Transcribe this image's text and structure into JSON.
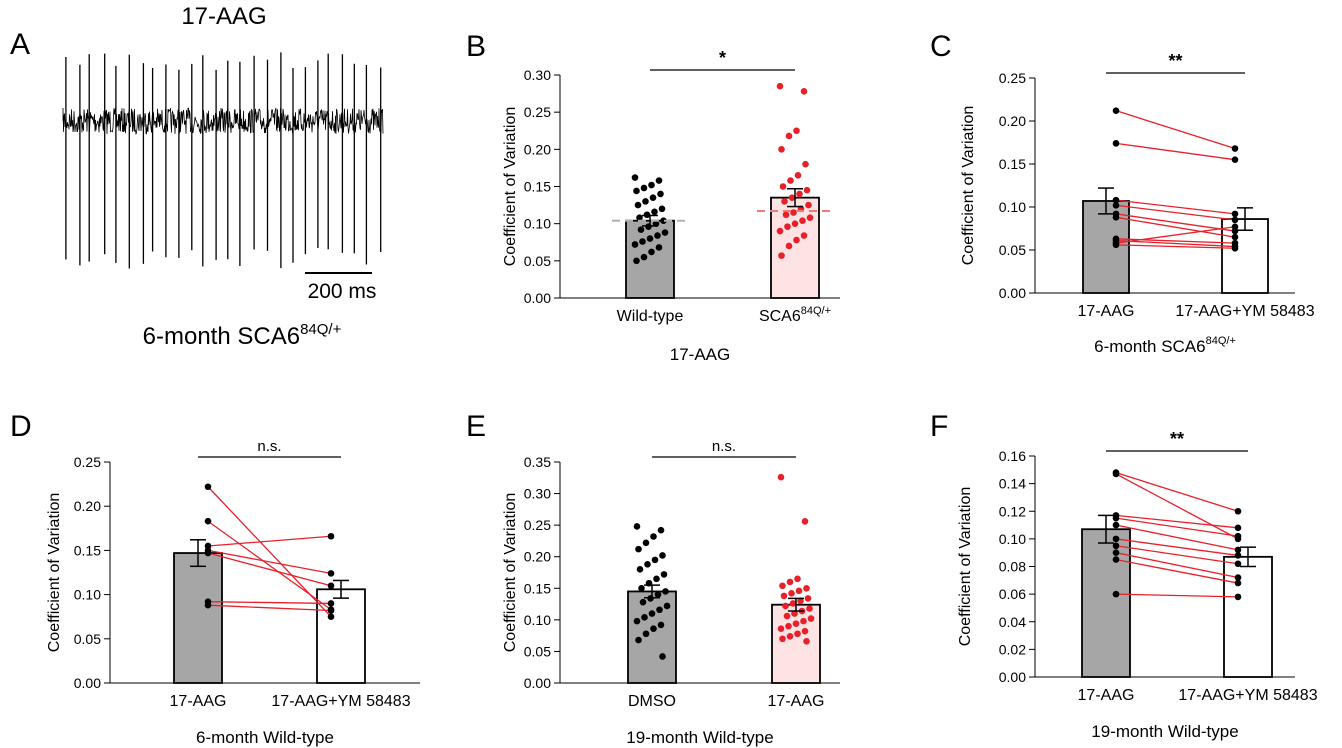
{
  "colors": {
    "black": "#000000",
    "red": "#e8202a",
    "gray_bar": "#a6a6a6",
    "pink_bar": "#fde3e3",
    "white_bar": "#ffffff",
    "ref_gray": "#b0b0b0",
    "ref_pink": "#ee7a7a"
  },
  "panel_a": {
    "letter": "A",
    "title": "17-AAG",
    "scale_label": "200 ms",
    "condition_prefix": "6-month SCA6",
    "condition_sup": "84Q/+",
    "spike_count": 26
  },
  "chart_data": [
    {
      "panel": "B",
      "type": "bar",
      "paired": false,
      "categories": [
        "Wild-type",
        "SCA6"
      ],
      "category_sup": [
        "",
        "84Q/+"
      ],
      "values": [
        0.104,
        0.135
      ],
      "errors": [
        0.007,
        0.012
      ],
      "ylim": [
        0,
        0.3
      ],
      "yticks": [
        "0.00",
        "0.05",
        "0.10",
        "0.15",
        "0.20",
        "0.25",
        "0.30"
      ],
      "ylabel": "Coefficient of Variation",
      "xlabel": "17-AAG",
      "xlabel_sup": "",
      "significance": "*",
      "bar_fill": [
        "gray",
        "pink"
      ],
      "dot_color": [
        "black",
        "red"
      ],
      "reference_lines": [
        0.104,
        0.117
      ],
      "points": [
        [
          0.162,
          0.158,
          0.152,
          0.148,
          0.144,
          0.14,
          0.135,
          0.13,
          0.125,
          0.12,
          0.116,
          0.112,
          0.108,
          0.104,
          0.1,
          0.096,
          0.092,
          0.088,
          0.084,
          0.08,
          0.076,
          0.072,
          0.068,
          0.062,
          0.055,
          0.05
        ],
        [
          0.285,
          0.278,
          0.225,
          0.218,
          0.2,
          0.18,
          0.165,
          0.158,
          0.15,
          0.145,
          0.14,
          0.135,
          0.13,
          0.125,
          0.12,
          0.115,
          0.112,
          0.108,
          0.104,
          0.1,
          0.096,
          0.09,
          0.084,
          0.078,
          0.07,
          0.057
        ]
      ]
    },
    {
      "panel": "C",
      "type": "bar",
      "paired": true,
      "categories": [
        "17-AAG",
        "17-AAG+YM 58483"
      ],
      "category_sup": [
        "",
        ""
      ],
      "values": [
        0.107,
        0.086
      ],
      "errors": [
        0.015,
        0.013
      ],
      "ylim": [
        0,
        0.25
      ],
      "yticks": [
        "0.00",
        "0.05",
        "0.10",
        "0.15",
        "0.20",
        "0.25"
      ],
      "ylabel": "Coefficient of Variation",
      "xlabel": "6-month SCA6",
      "xlabel_sup": "84Q/+",
      "significance": "**",
      "bar_fill": [
        "gray",
        "white"
      ],
      "pairs": [
        [
          0.212,
          0.168
        ],
        [
          0.174,
          0.155
        ],
        [
          0.108,
          0.092
        ],
        [
          0.102,
          0.085
        ],
        [
          0.092,
          0.072
        ],
        [
          0.088,
          0.065
        ],
        [
          0.063,
          0.058
        ],
        [
          0.061,
          0.054
        ],
        [
          0.058,
          0.077
        ],
        [
          0.056,
          0.052
        ]
      ]
    },
    {
      "panel": "D",
      "type": "bar",
      "paired": true,
      "categories": [
        "17-AAG",
        "17-AAG+YM 58483"
      ],
      "category_sup": [
        "",
        ""
      ],
      "values": [
        0.147,
        0.106
      ],
      "errors": [
        0.015,
        0.01
      ],
      "ylim": [
        0,
        0.25
      ],
      "yticks": [
        "0.00",
        "0.05",
        "0.10",
        "0.15",
        "0.20",
        "0.25"
      ],
      "ylabel": "Coefficient of Variation",
      "xlabel": "6-month Wild-type",
      "xlabel_sup": "",
      "significance": "n.s.",
      "bar_fill": [
        "gray",
        "white"
      ],
      "pairs": [
        [
          0.222,
          0.075
        ],
        [
          0.183,
          0.083
        ],
        [
          0.155,
          0.166
        ],
        [
          0.15,
          0.124
        ],
        [
          0.147,
          0.11
        ],
        [
          0.092,
          0.09
        ],
        [
          0.088,
          0.082
        ]
      ]
    },
    {
      "panel": "E",
      "type": "bar",
      "paired": false,
      "categories": [
        "DMSO",
        "17-AAG"
      ],
      "category_sup": [
        "",
        ""
      ],
      "values": [
        0.145,
        0.124
      ],
      "errors": [
        0.01,
        0.01
      ],
      "ylim": [
        0,
        0.35
      ],
      "yticks": [
        "0.00",
        "0.05",
        "0.10",
        "0.15",
        "0.20",
        "0.25",
        "0.30",
        "0.35"
      ],
      "ylabel": "Coefficient of Variation",
      "xlabel": "19-month Wild-type",
      "xlabel_sup": "",
      "significance": "n.s.",
      "bar_fill": [
        "gray",
        "pink"
      ],
      "dot_color": [
        "black",
        "red"
      ],
      "reference_lines": [],
      "points": [
        [
          0.248,
          0.242,
          0.232,
          0.222,
          0.212,
          0.202,
          0.195,
          0.188,
          0.18,
          0.172,
          0.165,
          0.158,
          0.15,
          0.145,
          0.14,
          0.134,
          0.128,
          0.122,
          0.116,
          0.11,
          0.104,
          0.098,
          0.092,
          0.086,
          0.078,
          0.068,
          0.042
        ],
        [
          0.326,
          0.256,
          0.165,
          0.16,
          0.154,
          0.15,
          0.146,
          0.142,
          0.138,
          0.134,
          0.13,
          0.126,
          0.122,
          0.118,
          0.114,
          0.11,
          0.106,
          0.102,
          0.098,
          0.094,
          0.09,
          0.086,
          0.082,
          0.078,
          0.074,
          0.07,
          0.066
        ]
      ]
    },
    {
      "panel": "F",
      "type": "bar",
      "paired": true,
      "categories": [
        "17-AAG",
        "17-AAG+YM 58483"
      ],
      "category_sup": [
        "",
        ""
      ],
      "values": [
        0.107,
        0.087
      ],
      "errors": [
        0.01,
        0.007
      ],
      "ylim": [
        0,
        0.16
      ],
      "yticks": [
        "0.00",
        "0.02",
        "0.04",
        "0.06",
        "0.08",
        "0.10",
        "0.12",
        "0.14",
        "0.16"
      ],
      "ylabel": "Coefficient of Variation",
      "xlabel": "19-month Wild-type",
      "xlabel_sup": "",
      "significance": "**",
      "bar_fill": [
        "gray",
        "white"
      ],
      "pairs": [
        [
          0.148,
          0.12
        ],
        [
          0.147,
          0.1
        ],
        [
          0.117,
          0.108
        ],
        [
          0.115,
          0.102
        ],
        [
          0.11,
          0.092
        ],
        [
          0.1,
          0.088
        ],
        [
          0.095,
          0.082
        ],
        [
          0.09,
          0.072
        ],
        [
          0.085,
          0.068
        ],
        [
          0.06,
          0.058
        ]
      ]
    }
  ]
}
